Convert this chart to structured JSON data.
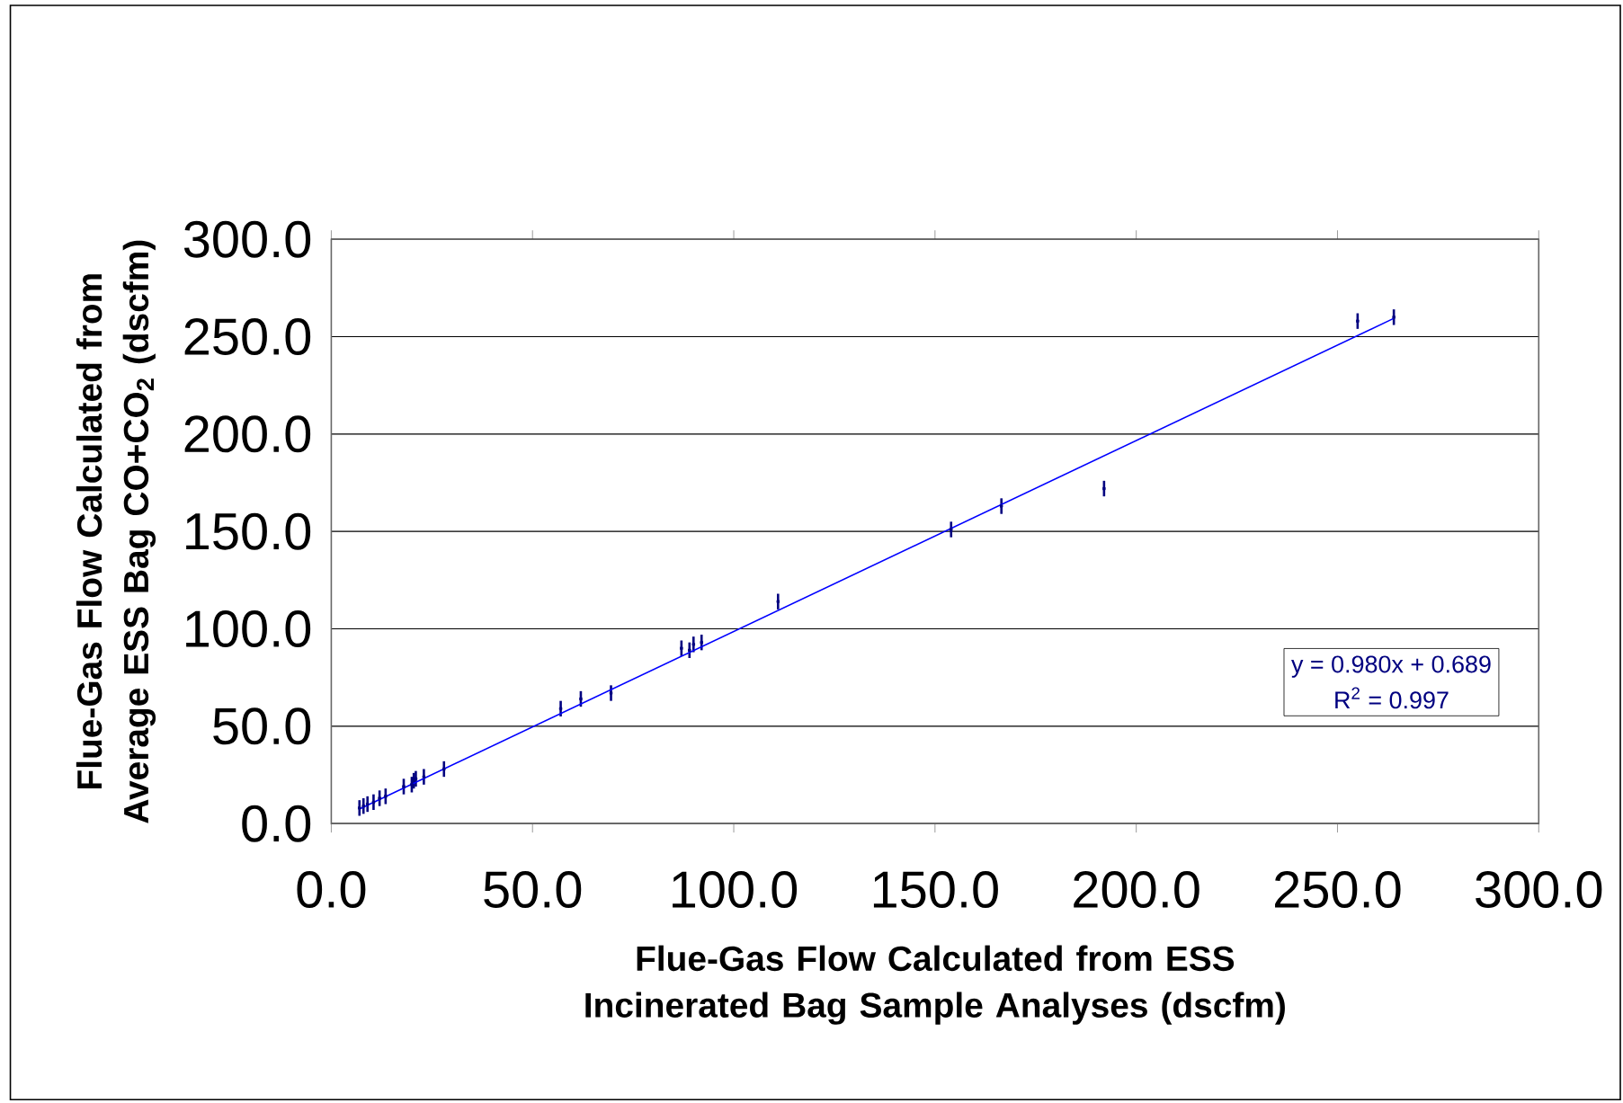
{
  "chart_data": {
    "type": "scatter",
    "xlabel": "Flue-Gas Flow Calculated from ESS Incinerated Bag Sample Analyses (dscfm)",
    "ylabel": "Flue-Gas Flow Calculated from Average ESS Bag CO+CO$_{2}$ (dscfm)",
    "x": [
      7,
      8,
      9,
      10.5,
      12,
      13.5,
      18,
      20,
      20.5,
      21,
      23,
      28,
      57,
      62,
      69.5,
      87,
      89,
      90,
      92,
      111,
      154,
      166.5,
      192,
      255,
      264
    ],
    "series": [
      {
        "color": "#000080",
        "marker": "square",
        "values": [
          8,
          9,
          10,
          11,
          13,
          14,
          19,
          20,
          22,
          23,
          24,
          28,
          59,
          64,
          67,
          90,
          89,
          92,
          93,
          114,
          151,
          163,
          172,
          258,
          260
        ],
        "errors": [
          4,
          4,
          4,
          4,
          4,
          4,
          4,
          4,
          4,
          4,
          4,
          4,
          4,
          4,
          4,
          4,
          4,
          4,
          4,
          4,
          4,
          4,
          4,
          4,
          4
        ]
      },
      {
        "type": "line",
        "color": "#0000ff",
        "x": [
          7,
          264
        ],
        "values": [
          7.5,
          259.4
        ]
      }
    ],
    "xlim": [
      0,
      300
    ],
    "ylim": [
      0,
      300
    ],
    "xticks": [
      {
        "value": 0,
        "label": "0.0"
      },
      {
        "value": 50,
        "label": "50.0"
      },
      {
        "value": 100,
        "label": "100.0"
      },
      {
        "value": 150,
        "label": "150.0"
      },
      {
        "value": 200,
        "label": "200.0"
      },
      {
        "value": 250,
        "label": "250.0"
      },
      {
        "value": 300,
        "label": "300.0"
      }
    ],
    "yticks": [
      {
        "value": 0,
        "label": "0.0"
      },
      {
        "value": 50,
        "label": "50.0"
      },
      {
        "value": 100,
        "label": "100.0"
      },
      {
        "value": 150,
        "label": "150.0"
      },
      {
        "value": 200,
        "label": "200.0"
      },
      {
        "value": 250,
        "label": "250.0"
      },
      {
        "value": 300,
        "label": "300.0"
      }
    ],
    "grid": "y",
    "annotations": [
      "y = 0.980x + 0.689",
      "R$^{2}$ = 0.997"
    ]
  }
}
